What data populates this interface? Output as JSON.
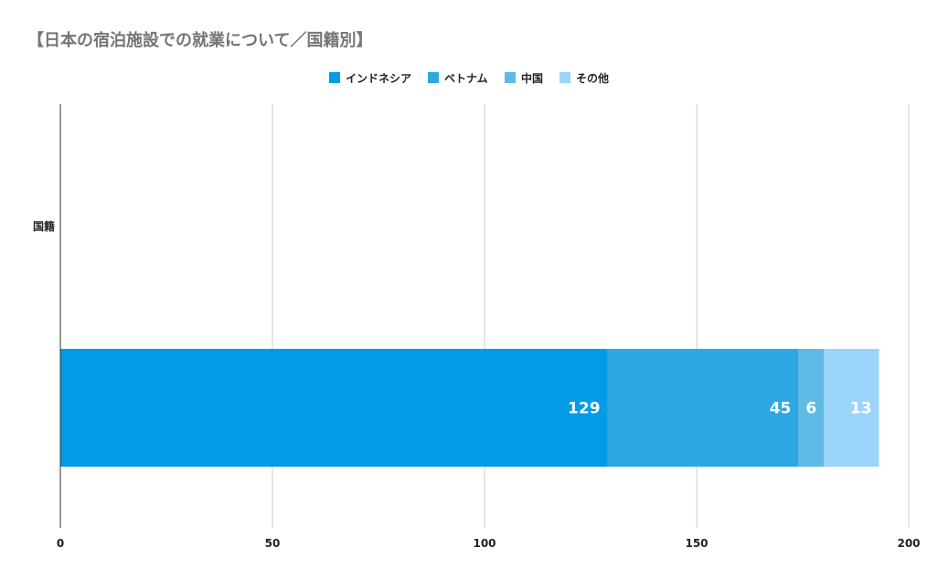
{
  "chart_data": {
    "type": "bar",
    "orientation": "horizontal",
    "stacked": true,
    "title": "【日本の宿泊施設での就業について／国籍別】",
    "categories": [
      "国籍"
    ],
    "series": [
      {
        "name": "インドネシア",
        "values": [
          129
        ],
        "color": "#039be5"
      },
      {
        "name": "ベトナム",
        "values": [
          45
        ],
        "color": "#2ea8e2"
      },
      {
        "name": "中国",
        "values": [
          6
        ],
        "color": "#5dbbe6"
      },
      {
        "name": "その他",
        "values": [
          13
        ],
        "color": "#9bd5fa"
      }
    ],
    "xlim": [
      0,
      200
    ],
    "xticks": [
      0,
      50,
      100,
      150,
      200
    ],
    "tick_labels": [
      "0",
      "50",
      "100",
      "150",
      "200"
    ],
    "data_labels": [
      "129",
      "45",
      "6",
      "13"
    ],
    "grid": true,
    "legend_position": "top"
  }
}
